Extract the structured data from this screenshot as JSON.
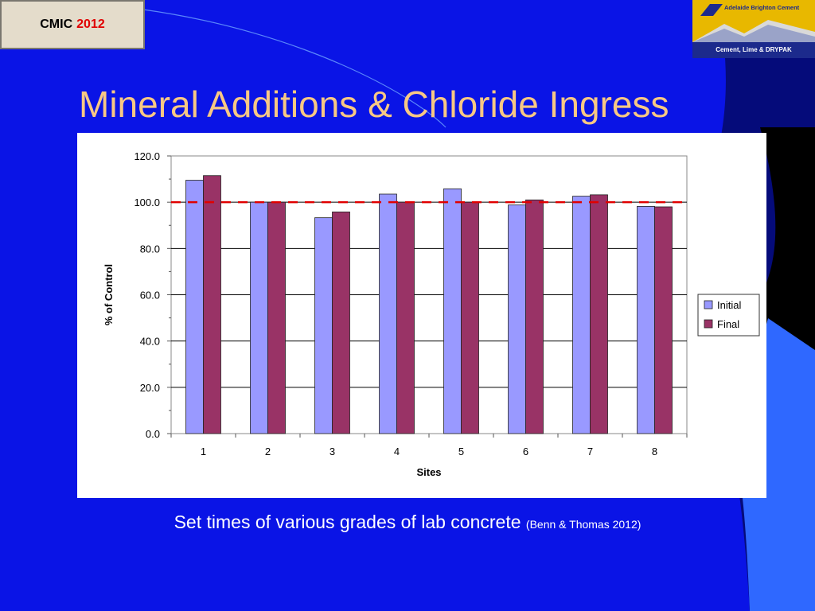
{
  "badge": {
    "label": "CMIC",
    "year": "2012"
  },
  "logo": {
    "brand": "Adelaide Brighton Cement",
    "tagline": "Cement, Lime & DRYPAK"
  },
  "title": "Mineral Additions & Chloride Ingress",
  "caption": {
    "main": "Set times of various grades of lab concrete",
    "citation": "(Benn & Thomas 2012)"
  },
  "colors": {
    "background": "#0a14e6",
    "title": "#f8c884",
    "initial": "#9999ff",
    "final": "#993366",
    "reference_line": "#e00000"
  },
  "chart_data": {
    "type": "bar",
    "title": "",
    "xlabel": "Sites",
    "ylabel": "% of Control",
    "categories": [
      "1",
      "2",
      "3",
      "4",
      "5",
      "6",
      "7",
      "8"
    ],
    "series": [
      {
        "name": "Initial",
        "values": [
          109.5,
          100.0,
          93.3,
          103.5,
          105.8,
          98.8,
          102.6,
          98.2
        ]
      },
      {
        "name": "Final",
        "values": [
          111.5,
          100.0,
          95.8,
          100.0,
          100.0,
          101.0,
          103.2,
          98.0
        ]
      }
    ],
    "ylim": [
      0,
      120
    ],
    "yticks": [
      "0.0",
      "20.0",
      "40.0",
      "60.0",
      "80.0",
      "100.0",
      "120.0"
    ],
    "reference_line": {
      "value": 100,
      "style": "dashed"
    },
    "grid": true,
    "legend": "right"
  }
}
